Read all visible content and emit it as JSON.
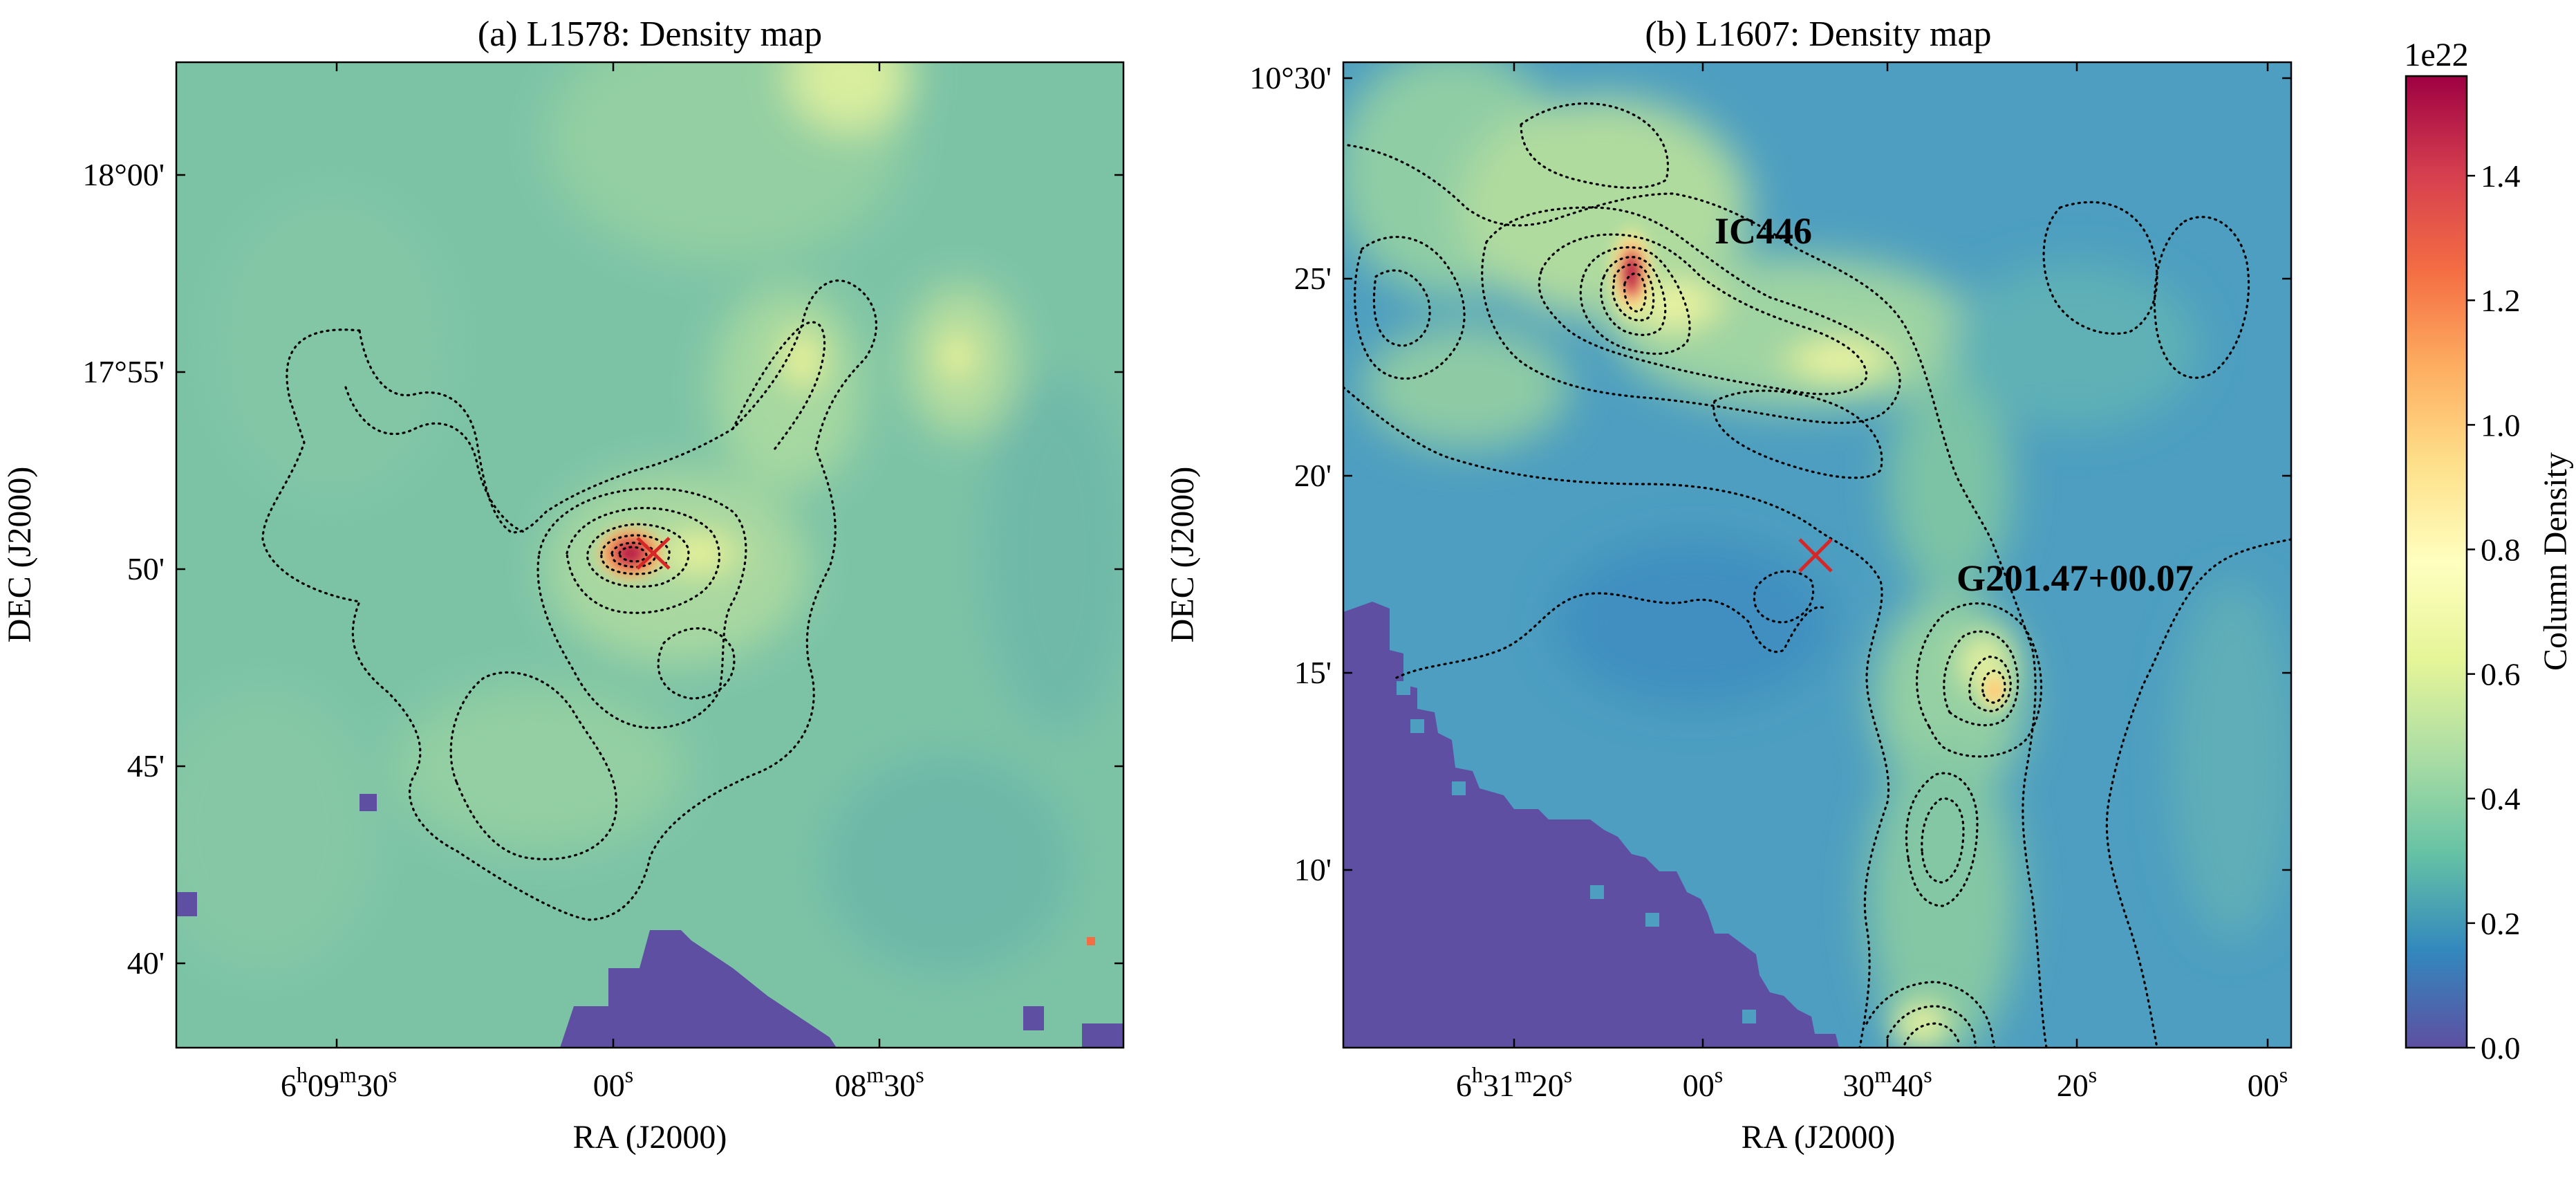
{
  "chart_data": [
    {
      "type": "heatmap",
      "title": "(a) L1578: Density map",
      "xlabel": "RA (J2000)",
      "ylabel": "DEC (J2000)",
      "x_tick_labels": [
        {
          "base": "6",
          "sup1": "h",
          "mid": "09",
          "sup2": "m",
          "end": "30",
          "sup3": "s"
        },
        {
          "base": "",
          "sup1": "",
          "mid": "",
          "sup2": "",
          "end": "00",
          "sup3": "s"
        },
        {
          "base": "",
          "sup1": "",
          "mid": "08",
          "sup2": "m",
          "end": "30",
          "sup3": "s"
        }
      ],
      "y_tick_labels": [
        "18°00'",
        "17°55'",
        "50'",
        "45'",
        "40'"
      ],
      "dec_ticks_arcmin": [
        1080,
        1075,
        1070,
        1065,
        1060
      ],
      "marker": "red-x"
    },
    {
      "type": "heatmap",
      "title": "(b) L1607: Density map",
      "xlabel": "RA (J2000)",
      "ylabel": "DEC (J2000)",
      "x_tick_labels": [
        {
          "base": "6",
          "sup1": "h",
          "mid": "31",
          "sup2": "m",
          "end": "20",
          "sup3": "s"
        },
        {
          "base": "",
          "sup1": "",
          "mid": "",
          "sup2": "",
          "end": "00",
          "sup3": "s"
        },
        {
          "base": "",
          "sup1": "",
          "mid": "30",
          "sup2": "m",
          "end": "40",
          "sup3": "s"
        },
        {
          "base": "",
          "sup1": "",
          "mid": "",
          "sup2": "",
          "end": "20",
          "sup3": "s"
        },
        {
          "base": "",
          "sup1": "",
          "mid": "",
          "sup2": "",
          "end": "00",
          "sup3": "s"
        }
      ],
      "y_tick_labels": [
        "10°30'",
        "25'",
        "20'",
        "15'",
        "10'"
      ],
      "dec_ticks_arcmin": [
        630,
        625,
        620,
        615,
        610
      ],
      "annotations": [
        "IC446",
        "G201.47+00.07"
      ],
      "marker": "red-x"
    }
  ],
  "colorbar": {
    "label": "Column Density",
    "offset_text": "1e22",
    "ticks": [
      0.0,
      0.2,
      0.4,
      0.6,
      0.8,
      1.0,
      1.2,
      1.4
    ],
    "tick_labels": [
      "0.0",
      "0.2",
      "0.4",
      "0.6",
      "0.8",
      "1.0",
      "1.2",
      "1.4"
    ],
    "vmin": 0.0,
    "vmax": 1.56,
    "colormap": "Spectral_r"
  }
}
